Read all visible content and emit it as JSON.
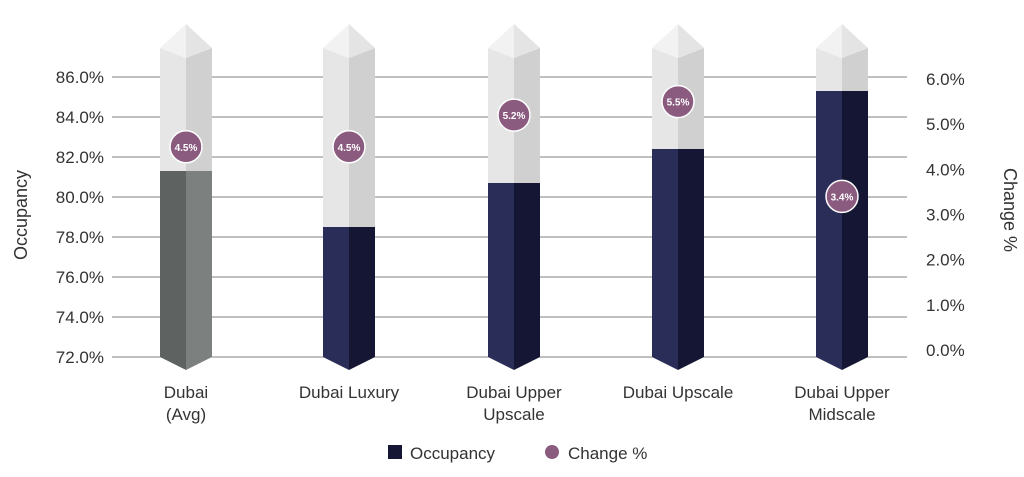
{
  "chart_data": {
    "type": "bar",
    "categories": [
      "Dubai\n(Avg)",
      "Dubai Luxury",
      "Dubai Upper\nUpscale",
      "Dubai Upscale",
      "Dubai Upper\nMidscale"
    ],
    "series": [
      {
        "name": "Occupancy",
        "axis": "left",
        "values": [
          81.3,
          78.5,
          80.7,
          82.4,
          85.3
        ]
      },
      {
        "name": "Change %",
        "axis": "right",
        "type": "scatter",
        "values": [
          4.5,
          4.5,
          5.2,
          5.5,
          3.4
        ]
      }
    ],
    "data_labels": [
      "4.5%",
      "4.5%",
      "5.2%",
      "5.5%",
      "3.4%"
    ],
    "ylabel": "Occupancy",
    "y2label": "Change %",
    "ylim": [
      72,
      86
    ],
    "y2lim": [
      0,
      6
    ],
    "yticks": [
      "72.0%",
      "74.0%",
      "76.0%",
      "78.0%",
      "80.0%",
      "82.0%",
      "84.0%",
      "86.0%"
    ],
    "y2ticks": [
      "0.0%",
      "1.0%",
      "2.0%",
      "3.0%",
      "4.0%",
      "5.0%",
      "6.0%"
    ],
    "grid": true,
    "legend": "bottom",
    "colors": {
      "occupancy": "#2a2d57",
      "occupancy_dark": "#141634",
      "average": "#5e6362",
      "average_dark": "#7c8180",
      "background_column": "#e6e6e6",
      "background_column_dark": "#d0d0d0",
      "column_cap": "#f2f2f2",
      "change_dot": "#8b5a7f",
      "grid": "#808080"
    }
  }
}
